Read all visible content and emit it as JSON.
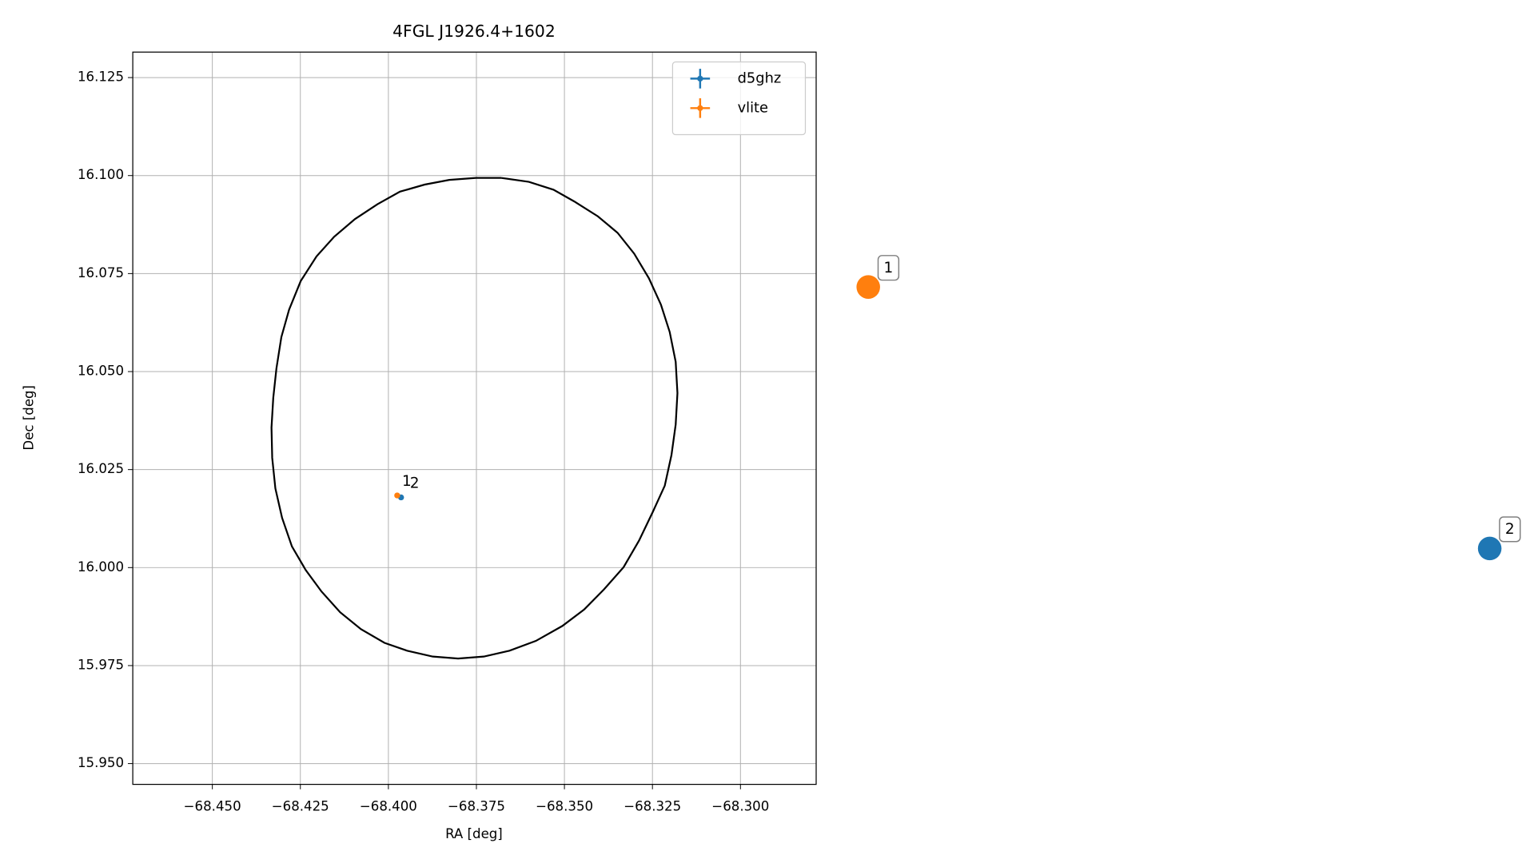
{
  "chart_data": {
    "type": "scatter",
    "title": "4FGL J1926.4+1602",
    "xlabel": "RA [deg]",
    "ylabel": "Dec [deg]",
    "xlim": [
      -68.4726,
      -68.2785
    ],
    "ylim": [
      15.9447,
      16.1315
    ],
    "xticks": [
      {
        "value": -68.45,
        "label": "−68.450"
      },
      {
        "value": -68.425,
        "label": "−68.425"
      },
      {
        "value": -68.4,
        "label": "−68.400"
      },
      {
        "value": -68.375,
        "label": "−68.375"
      },
      {
        "value": -68.35,
        "label": "−68.350"
      },
      {
        "value": -68.325,
        "label": "−68.325"
      },
      {
        "value": -68.3,
        "label": "−68.300"
      }
    ],
    "yticks": [
      {
        "value": 15.95,
        "label": "15.950"
      },
      15.975,
      {
        "value": 16,
        "label": "16.000"
      },
      16.025,
      {
        "value": 16.05,
        "label": "16.050"
      },
      16.075,
      {
        "value": 16.1,
        "label": "16.100"
      },
      16.125
    ],
    "grid": true,
    "legend": "upper right",
    "series": [
      {
        "name": "d5ghz",
        "color": "#1f77b4",
        "x": [
          -68.3964
        ],
        "y": [
          16.0179
        ],
        "point_labels": [
          "2"
        ]
      },
      {
        "name": "vlite",
        "color": "#ff7f0e",
        "x": [
          -68.3975
        ],
        "y": [
          16.0184
        ],
        "point_labels": [
          "1"
        ]
      }
    ],
    "ellipse": {
      "color": "#000000",
      "x": [
        -68.3679,
        -68.3601,
        -68.3531,
        -68.3472,
        -68.3405,
        -68.3349,
        -68.3302,
        -68.326,
        -68.3226,
        -68.3201,
        -68.3184,
        -68.3179,
        -68.3184,
        -68.3196,
        -68.3215,
        -68.3249,
        -68.3288,
        -68.3332,
        -68.3388,
        -68.3444,
        -68.3506,
        -68.3581,
        -68.3656,
        -68.3729,
        -68.3802,
        -68.3874,
        -68.3947,
        -68.4011,
        -68.4078,
        -68.4137,
        -68.419,
        -68.4235,
        -68.4274,
        -68.4302,
        -68.4321,
        -68.433,
        -68.4332,
        -68.4327,
        -68.4318,
        -68.4304,
        -68.4282,
        -68.4249,
        -68.4204,
        -68.4154,
        -68.4095,
        -68.4031,
        -68.3967,
        -68.3897,
        -68.3827,
        -68.3751,
        -68.3679
      ],
      "y": [
        16.0994,
        16.0984,
        16.0964,
        16.0934,
        16.0896,
        16.0854,
        16.0801,
        16.0738,
        16.0671,
        16.0601,
        16.0525,
        16.0445,
        16.0365,
        16.0287,
        16.0209,
        16.0142,
        16.0069,
        16.0001,
        15.9944,
        15.9893,
        15.9851,
        15.9813,
        15.9788,
        15.9773,
        15.9768,
        15.9773,
        15.9788,
        15.9808,
        15.9843,
        15.9886,
        15.9939,
        15.9994,
        16.0054,
        16.0127,
        16.0202,
        16.028,
        16.0357,
        16.0433,
        16.0508,
        16.0588,
        16.0658,
        16.0731,
        16.0794,
        16.0844,
        16.0889,
        16.0927,
        16.0959,
        16.0977,
        16.0989,
        16.0994,
        16.0994
      ]
    },
    "callouts": [
      {
        "label": "1",
        "color": "#ff7f0e"
      },
      {
        "label": "2",
        "color": "#1f77b4"
      }
    ]
  }
}
